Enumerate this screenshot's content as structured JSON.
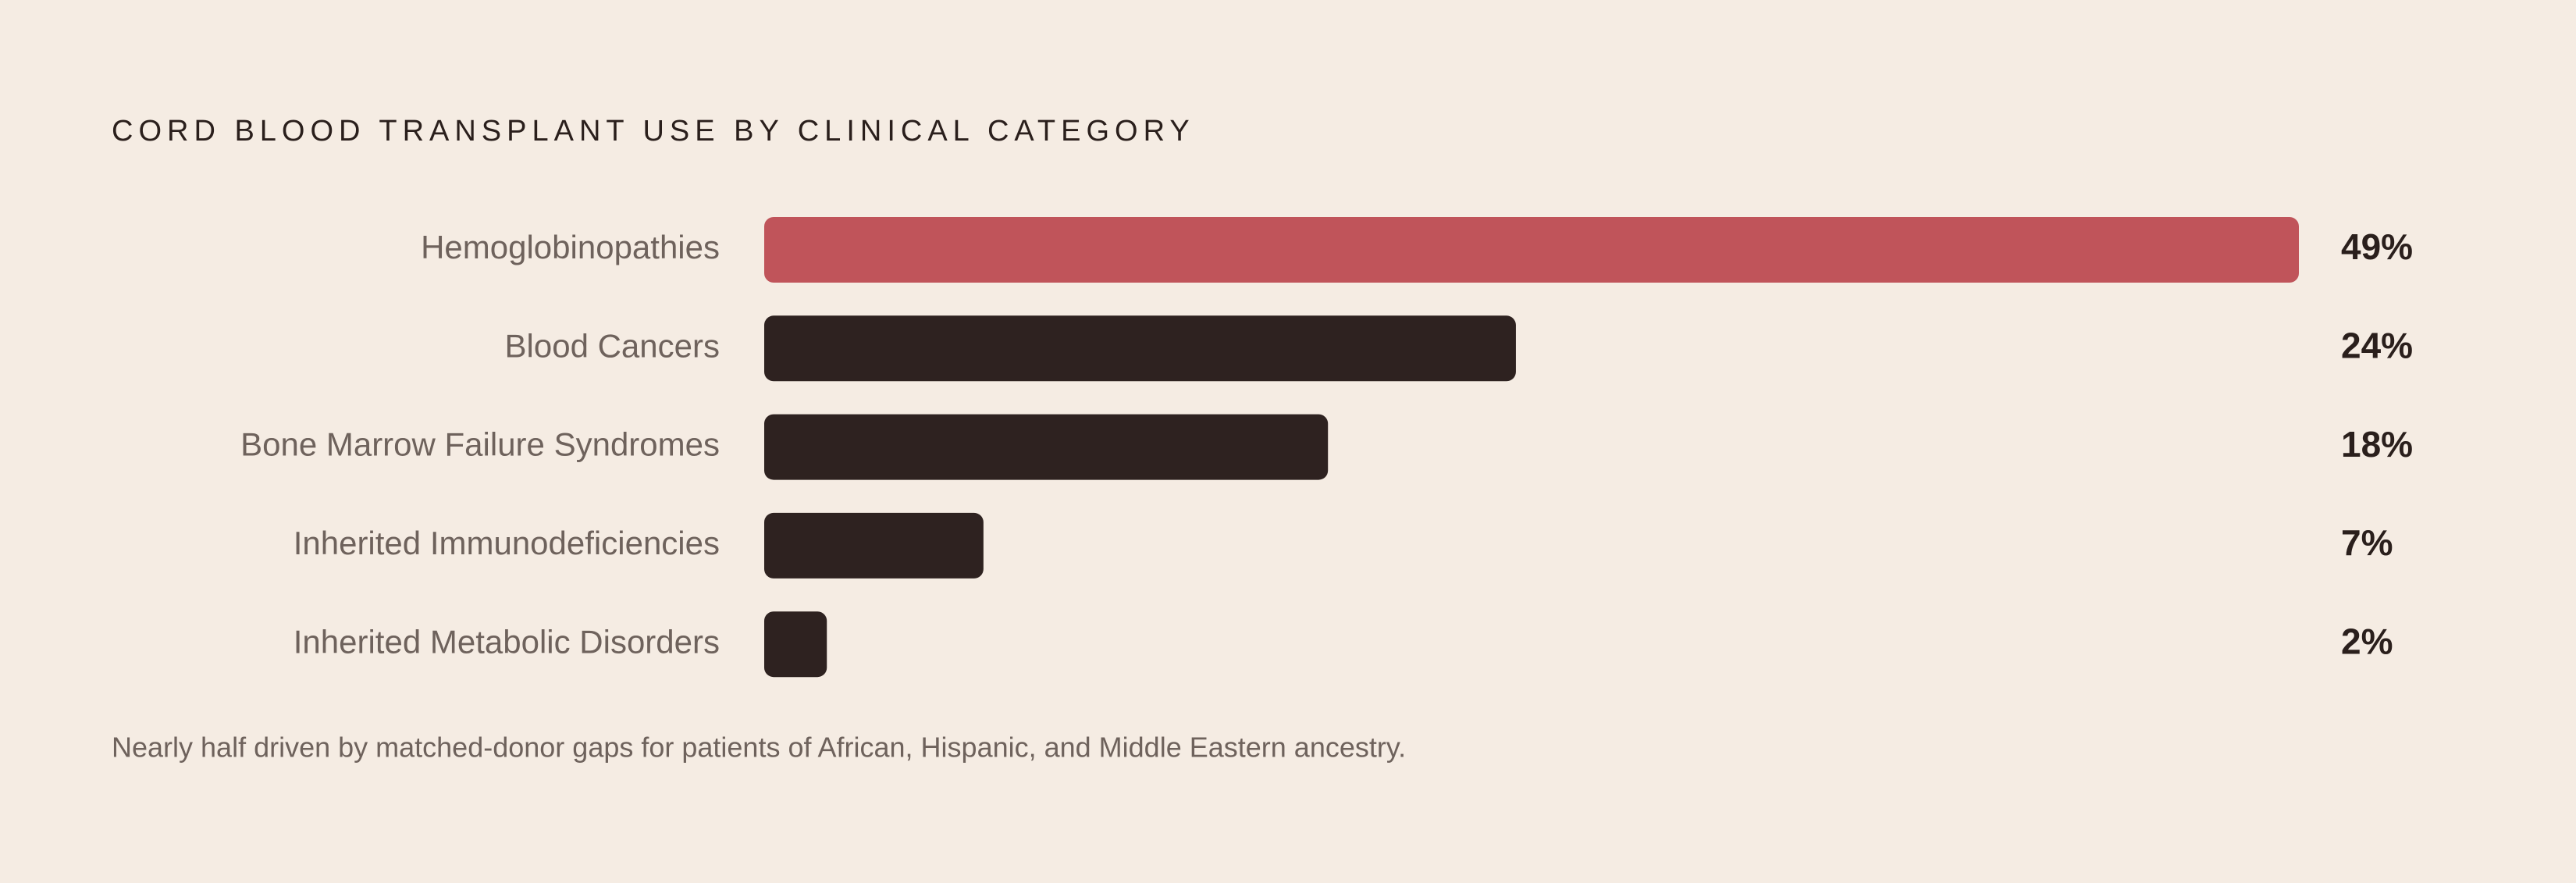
{
  "chart_data": {
    "type": "bar",
    "orientation": "horizontal",
    "title": "CORD BLOOD TRANSPLANT USE BY CLINICAL CATEGORY",
    "categories": [
      "Hemoglobinopathies",
      "Blood Cancers",
      "Bone Marrow Failure Syndromes",
      "Inherited Immunodeficiencies",
      "Inherited Metabolic Disorders"
    ],
    "values": [
      49,
      24,
      18,
      7,
      2
    ],
    "value_labels": [
      "49%",
      "24%",
      "18%",
      "7%",
      "2%"
    ],
    "colors": [
      "#c0545a",
      "#2e2220",
      "#2e2220",
      "#2e2220",
      "#2e2220"
    ],
    "note": "Nearly half driven by matched-donor gaps for patients of African, Hispanic, and Middle Eastern ancestry."
  }
}
